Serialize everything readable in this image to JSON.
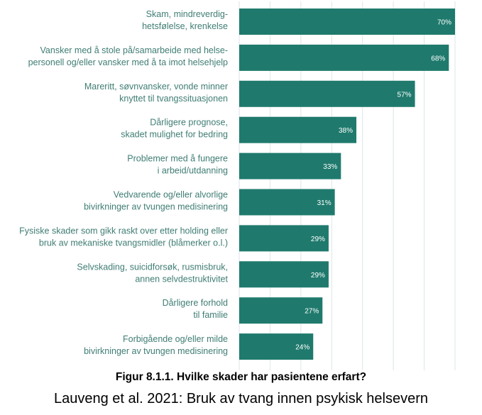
{
  "chart_data": {
    "type": "bar",
    "orientation": "horizontal",
    "categories": [
      [
        "Skam, mindreverdig-",
        "hetsfølelse, krenkelse"
      ],
      [
        "Vansker med å stole på/samarbeide med helse-",
        "personell og/eller vansker med å ta imot helsehjelp"
      ],
      [
        "Mareritt, søvnvansker, vonde minner",
        "knyttet til tvangssituasjonen"
      ],
      [
        "Dårligere prognose,",
        "skadet mulighet for bedring"
      ],
      [
        "Problemer med å fungere",
        "i arbeid/utdanning"
      ],
      [
        "Vedvarende og/eller alvorlige",
        "bivirkninger av tvungen medisinering"
      ],
      [
        "Fysiske skader som gikk raskt over etter holding eller",
        "bruk av mekaniske tvangsmidler (blåmerker o.l.)"
      ],
      [
        "Selvskading, suicidforsøk, rusmisbruk,",
        "annen selvdestruktivitet"
      ],
      [
        "Dårligere forhold",
        "til familie"
      ],
      [
        "Forbigående og/eller milde",
        "bivirkninger av tvungen medisinering"
      ]
    ],
    "values": [
      70,
      68,
      57,
      38,
      33,
      31,
      29,
      29,
      27,
      24
    ],
    "value_labels": [
      "70%",
      "68%",
      "57%",
      "38%",
      "33%",
      "31%",
      "29%",
      "29%",
      "27%",
      "24%"
    ],
    "xlim": [
      0,
      80
    ],
    "grid": true,
    "bar_color": "#1f7a6d",
    "label_color": "#3f7d73"
  },
  "caption": {
    "figure": "Figur 8.1.1. Hvilke skader har pasientene erfart?",
    "source": "Lauveng et al. 2021: Bruk av tvang innen psykisk helsevern"
  }
}
